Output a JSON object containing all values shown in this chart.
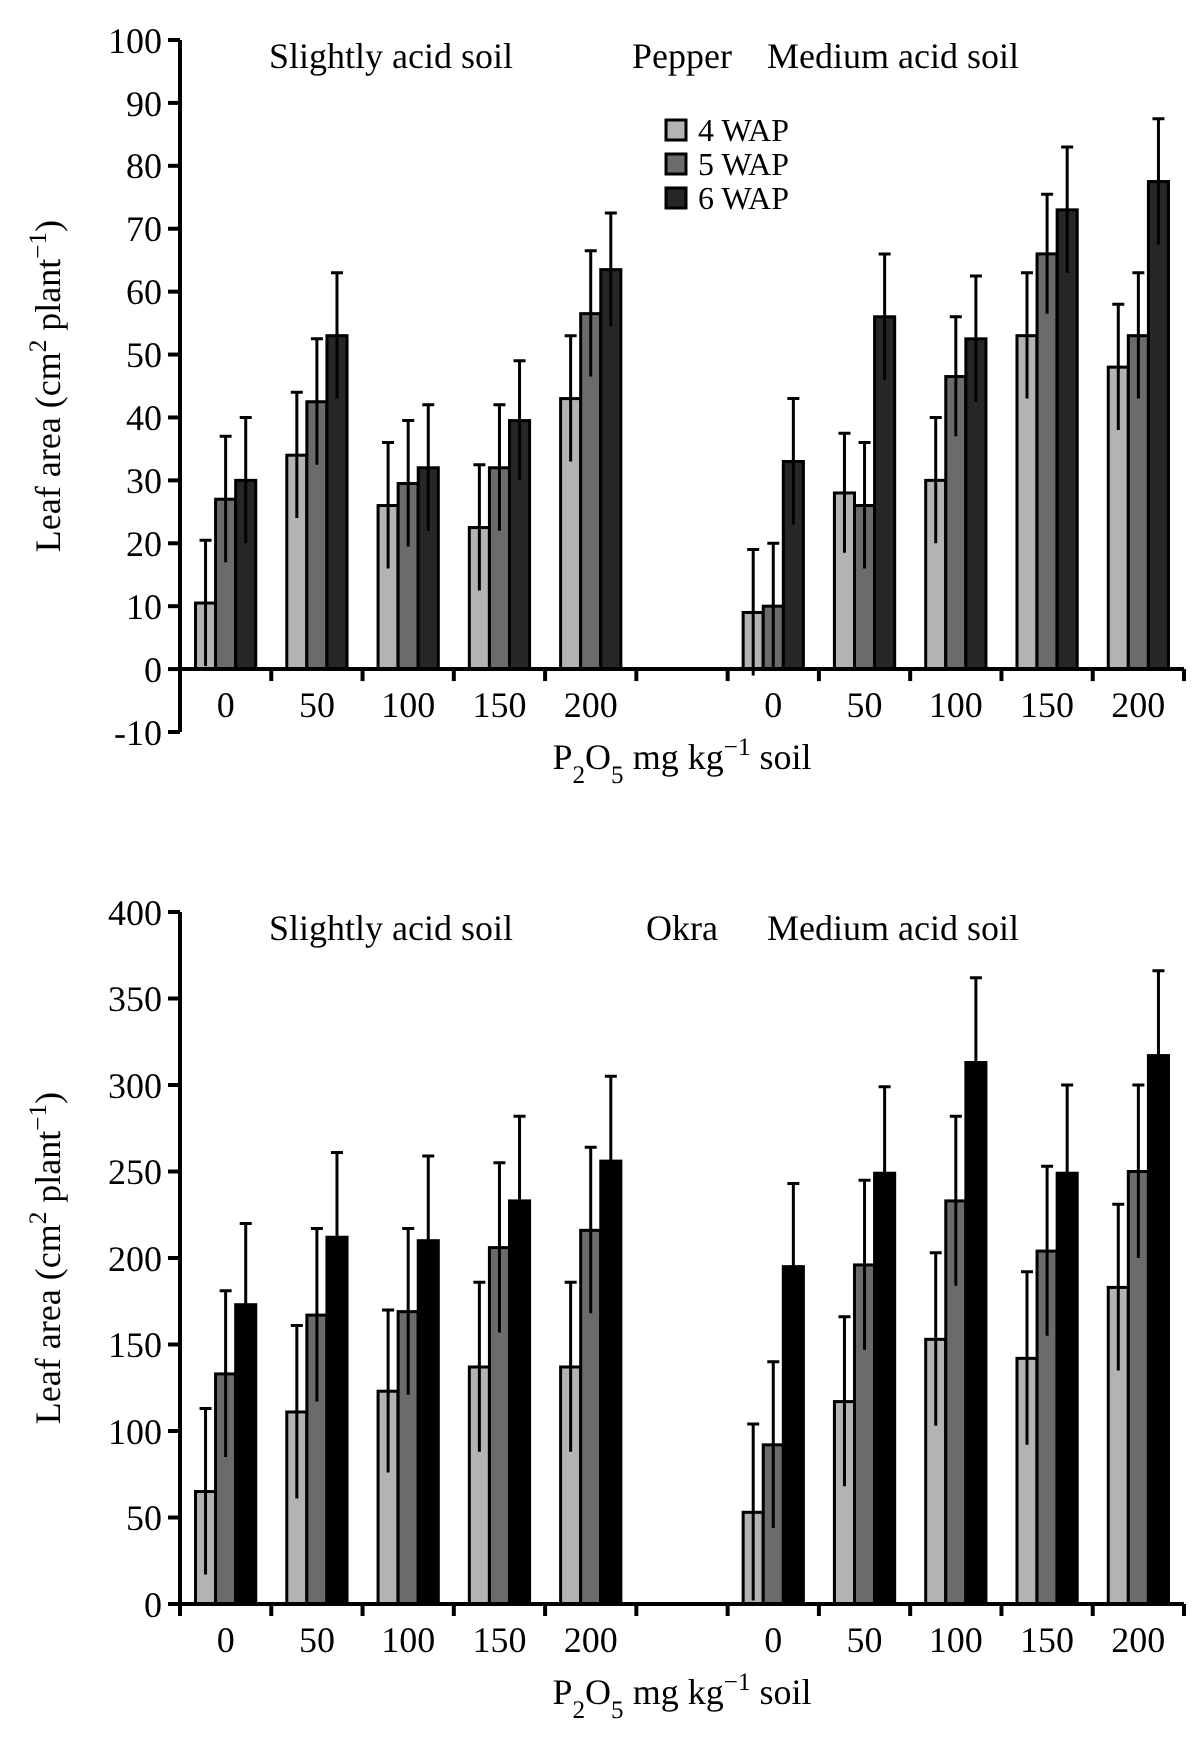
{
  "chart_data": [
    {
      "type": "bar",
      "title": "Pepper",
      "annotations": [
        "Slightly acid soil",
        "Medium acid soil"
      ],
      "xlabel": "P$_{2}$O$_{5}$ mg kg$^{−1}$ soil",
      "ylabel": "Leaf area (cm$^{2}$ plant$^{−1}$)",
      "categories": [
        "0",
        "50",
        "100",
        "150",
        "200",
        null,
        "0",
        "50",
        "100",
        "150",
        "200"
      ],
      "ylim": [
        -10,
        100
      ],
      "yticks": [
        -10,
        0,
        10,
        20,
        30,
        40,
        50,
        60,
        70,
        80,
        90,
        100
      ],
      "legend": "top",
      "series": [
        {
          "name": "4 WAP",
          "color": "#b3b3b3",
          "values": [
            10.5,
            34,
            26,
            22.5,
            43,
            null,
            9,
            28,
            30,
            53,
            48
          ],
          "errors": [
            10,
            10,
            10,
            10,
            10,
            null,
            10,
            9.5,
            10,
            10,
            10
          ]
        },
        {
          "name": "5 WAP",
          "color": "#6b6b6b",
          "values": [
            27,
            42.5,
            29.5,
            32,
            56.5,
            null,
            10,
            26,
            46.5,
            66,
            53
          ],
          "errors": [
            10,
            10,
            10,
            10,
            10,
            null,
            10,
            10,
            9.5,
            9.5,
            10
          ]
        },
        {
          "name": "6 WAP",
          "color": "#262626",
          "values": [
            30,
            53,
            32,
            39.5,
            63.5,
            null,
            33,
            56,
            52.5,
            73,
            77.5
          ],
          "errors": [
            10,
            10,
            10,
            9.5,
            9,
            null,
            10,
            10,
            10,
            10,
            10
          ]
        }
      ]
    },
    {
      "type": "bar",
      "title": "Okra",
      "annotations": [
        "Slightly acid soil",
        "Medium acid soil"
      ],
      "xlabel": "P$_{2}$O$_{5}$ mg kg$^{−1}$ soil",
      "ylabel": "Leaf area (cm$^{2}$ plant$^{−1}$)",
      "categories": [
        "0",
        "50",
        "100",
        "150",
        "200",
        null,
        "0",
        "50",
        "100",
        "150",
        "200"
      ],
      "ylim": [
        0,
        400
      ],
      "yticks": [
        0,
        50,
        100,
        150,
        200,
        250,
        300,
        350,
        400
      ],
      "series": [
        {
          "color": "#b3b3b3",
          "values": [
            65,
            111,
            123,
            137,
            137,
            null,
            53,
            117,
            153,
            142,
            183
          ],
          "errors": [
            48,
            50,
            47,
            49,
            49,
            null,
            51,
            49,
            50,
            50,
            48
          ]
        },
        {
          "color": "#6b6b6b",
          "values": [
            133,
            167,
            169,
            206,
            216,
            null,
            92,
            196,
            233,
            204,
            250
          ],
          "errors": [
            48,
            50,
            48,
            49,
            48,
            null,
            48,
            49,
            49,
            49,
            50
          ]
        },
        {
          "color": "#000000",
          "values": [
            173,
            212,
            210,
            233,
            256,
            null,
            195,
            249,
            313,
            249,
            317
          ],
          "errors": [
            47,
            49,
            49,
            49,
            49,
            null,
            48,
            50,
            49,
            51,
            49
          ]
        }
      ]
    }
  ]
}
